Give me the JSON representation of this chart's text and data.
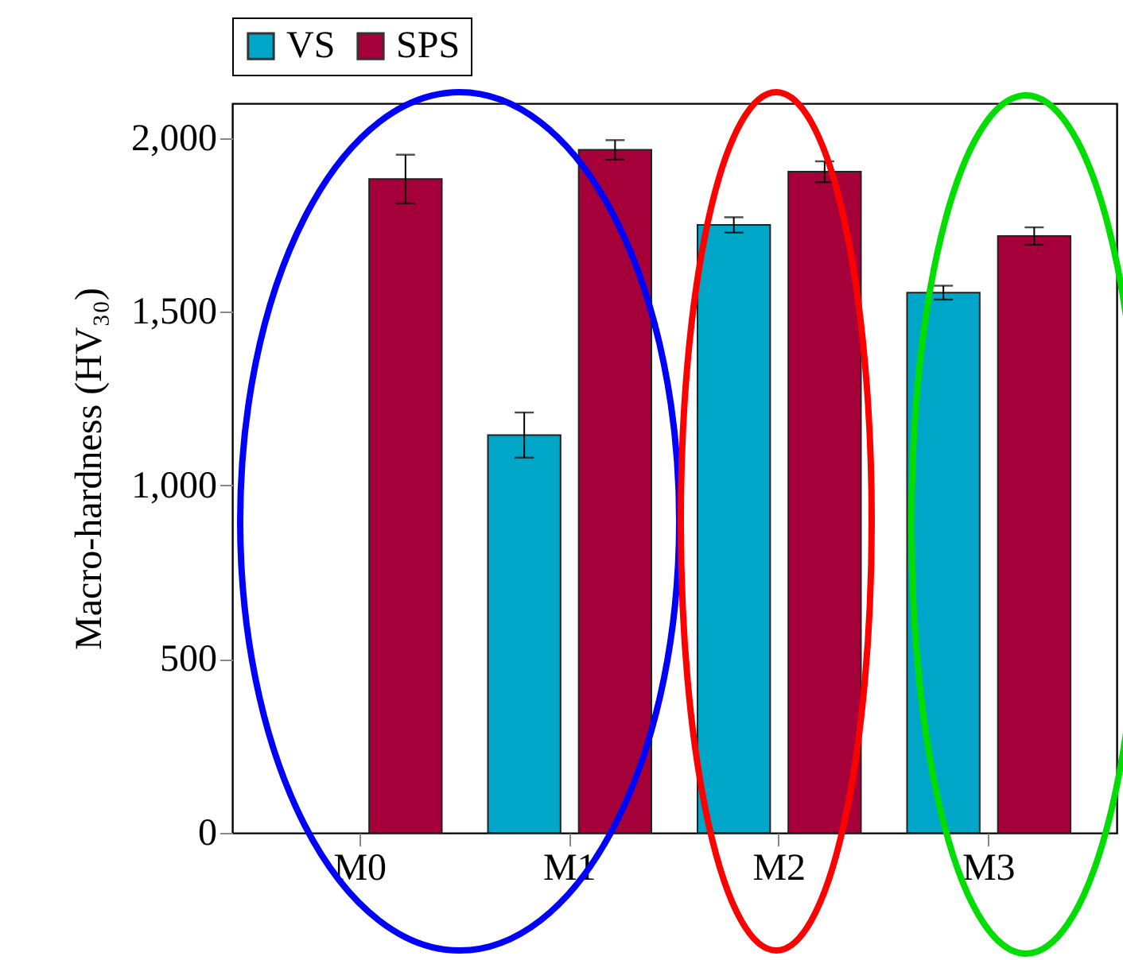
{
  "chart_data": {
    "type": "bar",
    "ylabel": "Macro-hardness (HV₃₀)",
    "categories": [
      "M0",
      "M1",
      "M2",
      "M3"
    ],
    "series": [
      {
        "name": "VS",
        "color": "#00a6c8",
        "values": [
          null,
          1145,
          1750,
          1555
        ],
        "errors": [
          null,
          65,
          22,
          20
        ]
      },
      {
        "name": "SPS",
        "color": "#a5003a",
        "values": [
          1882,
          1966,
          1903,
          1718
        ],
        "errors": [
          70,
          28,
          30,
          25
        ]
      }
    ],
    "ylim": [
      0,
      2100
    ],
    "yticks": [
      {
        "value": 0,
        "label": "0"
      },
      {
        "value": 500,
        "label": "500"
      },
      {
        "value": 1000,
        "label": "1,000"
      },
      {
        "value": 1500,
        "label": "1,500"
      },
      {
        "value": 2000,
        "label": "2,000"
      }
    ],
    "grid": false,
    "legend": "top"
  }
}
